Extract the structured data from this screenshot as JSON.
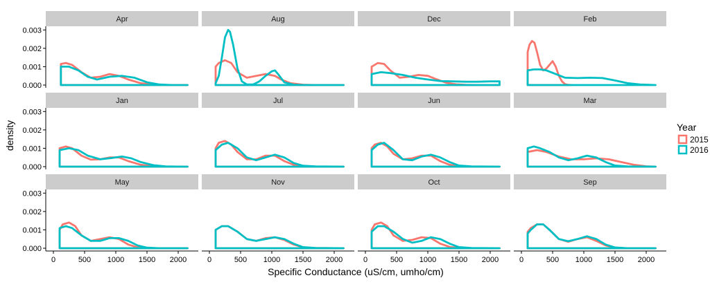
{
  "chart_data": {
    "type": "line",
    "subtype": "density-facets",
    "title": "",
    "xlabel": "Specific Conductance (uS/cm, umho/cm)",
    "ylabel": "density",
    "xlim": [
      0,
      2200
    ],
    "ylim": [
      0,
      0.0032
    ],
    "x_ticks": [
      0,
      500,
      1000,
      1500,
      2000
    ],
    "y_ticks": [
      0.0,
      0.001,
      0.002,
      0.003
    ],
    "y_tick_labels": [
      "0.000",
      "0.001",
      "0.002",
      "0.003"
    ],
    "grid": false,
    "legend": {
      "title": "Year",
      "placement": "right",
      "entries": [
        {
          "name": "2015",
          "color": "#F8766D"
        },
        {
          "name": "2016",
          "color": "#00BFC4"
        }
      ]
    },
    "facets": [
      {
        "label": "Apr",
        "series": [
          {
            "name": "2015",
            "x": [
              120,
              200,
              300,
              450,
              600,
              750,
              900,
              1050,
              1200,
              1400,
              1600,
              1800,
              2000,
              2150
            ],
            "y": [
              0.00115,
              0.0012,
              0.0011,
              0.0007,
              0.0004,
              0.00045,
              0.0006,
              0.0005,
              0.0003,
              0.0001,
              2e-05,
              0,
              0,
              0
            ]
          },
          {
            "name": "2016",
            "x": [
              120,
              250,
              400,
              550,
              700,
              900,
              1100,
              1300,
              1500,
              1700,
              1900,
              2150
            ],
            "y": [
              0.001,
              0.001,
              0.0008,
              0.00045,
              0.0003,
              0.00045,
              0.0005,
              0.0004,
              0.00015,
              3e-05,
              0,
              0
            ]
          }
        ]
      },
      {
        "label": "Aug",
        "series": [
          {
            "name": "2015",
            "x": [
              100,
              150,
              250,
              350,
              450,
              600,
              750,
              900,
              1050,
              1150,
              1300,
              1500,
              1700,
              2000,
              2150
            ],
            "y": [
              0.001,
              0.0012,
              0.00135,
              0.0012,
              0.0007,
              0.0004,
              0.0005,
              0.0006,
              0.0005,
              0.0003,
              0.0001,
              2e-05,
              0,
              0,
              0
            ]
          },
          {
            "name": "2016",
            "x": [
              100,
              150,
              200,
              250,
              300,
              330,
              380,
              450,
              520,
              600,
              700,
              800,
              900,
              1000,
              1050,
              1100,
              1200,
              1350,
              1500,
              1800,
              2150
            ],
            "y": [
              0.0001,
              0.0005,
              0.0015,
              0.0026,
              0.003,
              0.0029,
              0.0022,
              0.0009,
              0.0002,
              3e-05,
              3e-05,
              0.0002,
              0.0005,
              0.00075,
              0.0008,
              0.0006,
              0.00015,
              2e-05,
              0,
              0,
              0
            ]
          }
        ]
      },
      {
        "label": "Dec",
        "series": [
          {
            "name": "2015",
            "x": [
              100,
              200,
              300,
              400,
              550,
              700,
              850,
              1000,
              1150,
              1300,
              1450,
              1600,
              1800,
              2000,
              2150
            ],
            "y": [
              0.001,
              0.0012,
              0.00115,
              0.0008,
              0.0004,
              0.00045,
              0.00055,
              0.0005,
              0.0003,
              0.00012,
              4e-05,
              1e-05,
              0,
              0,
              0
            ]
          },
          {
            "name": "2016",
            "x": [
              100,
              250,
              400,
              600,
              800,
              1000,
              1200,
              1400,
              1600,
              1800,
              2000,
              2150
            ],
            "y": [
              0.0006,
              0.0007,
              0.00065,
              0.00055,
              0.0004,
              0.0003,
              0.00022,
              0.0002,
              0.00018,
              0.00018,
              0.0002,
              0.0002
            ]
          }
        ]
      },
      {
        "label": "Feb",
        "series": [
          {
            "name": "2015",
            "x": [
              100,
              130,
              170,
              210,
              250,
              300,
              350,
              400,
              450,
              500,
              550,
              600,
              650,
              700,
              750,
              800
            ],
            "y": [
              0.0018,
              0.0022,
              0.0024,
              0.0023,
              0.0018,
              0.0011,
              0.0008,
              0.0009,
              0.0011,
              0.0013,
              0.001,
              0.0005,
              0.0002,
              5e-05,
              1e-05,
              0
            ]
          },
          {
            "name": "2016",
            "x": [
              100,
              200,
              300,
              400,
              550,
              700,
              900,
              1100,
              1300,
              1500,
              1700,
              1900,
              2150
            ],
            "y": [
              0.0008,
              0.00085,
              0.00085,
              0.0008,
              0.0006,
              0.0004,
              0.00038,
              0.0004,
              0.00038,
              0.00025,
              0.0001,
              3e-05,
              0
            ]
          }
        ]
      },
      {
        "label": "Jan",
        "series": [
          {
            "name": "2015",
            "x": [
              100,
              200,
              300,
              450,
              600,
              750,
              900,
              1050,
              1200,
              1400,
              1600,
              1800,
              2150
            ],
            "y": [
              0.001,
              0.0011,
              0.001,
              0.0006,
              0.00038,
              0.0004,
              0.0005,
              0.0005,
              0.0003,
              0.0001,
              2e-05,
              0,
              0
            ]
          },
          {
            "name": "2016",
            "x": [
              100,
              250,
              400,
              550,
              750,
              950,
              1100,
              1250,
              1400,
              1600,
              1800,
              2150
            ],
            "y": [
              0.0009,
              0.001,
              0.0009,
              0.0006,
              0.0004,
              0.00048,
              0.00055,
              0.00045,
              0.00025,
              8e-05,
              1e-05,
              0
            ]
          }
        ]
      },
      {
        "label": "Jul",
        "series": [
          {
            "name": "2015",
            "x": [
              100,
              150,
              250,
              350,
              450,
              600,
              750,
              900,
              1050,
              1200,
              1350,
              1500,
              1700,
              2150
            ],
            "y": [
              0.001,
              0.0013,
              0.0014,
              0.0012,
              0.0008,
              0.0004,
              0.0004,
              0.0006,
              0.0006,
              0.0003,
              0.0001,
              2e-05,
              0,
              0
            ]
          },
          {
            "name": "2016",
            "x": [
              100,
              200,
              300,
              450,
              600,
              750,
              900,
              1050,
              1200,
              1350,
              1500,
              1700,
              2150
            ],
            "y": [
              0.0009,
              0.0012,
              0.0013,
              0.001,
              0.0005,
              0.00035,
              0.0005,
              0.00065,
              0.0005,
              0.0002,
              5e-05,
              1e-05,
              0
            ]
          }
        ]
      },
      {
        "label": "Jun",
        "series": [
          {
            "name": "2015",
            "x": [
              100,
              150,
              250,
              350,
              450,
              600,
              750,
              900,
              1050,
              1200,
              1350,
              1500,
              1700,
              2150
            ],
            "y": [
              0.001,
              0.0012,
              0.0013,
              0.0011,
              0.0007,
              0.0004,
              0.00045,
              0.0006,
              0.0006,
              0.0003,
              0.0001,
              2e-05,
              0,
              0
            ]
          },
          {
            "name": "2016",
            "x": [
              100,
              200,
              300,
              450,
              600,
              750,
              900,
              1050,
              1200,
              1350,
              1500,
              1700,
              2150
            ],
            "y": [
              0.0009,
              0.0012,
              0.0013,
              0.0009,
              0.0004,
              0.00035,
              0.00055,
              0.00065,
              0.0005,
              0.00025,
              6e-05,
              1e-05,
              0
            ]
          }
        ]
      },
      {
        "label": "Mar",
        "series": [
          {
            "name": "2015",
            "x": [
              100,
              250,
              400,
              600,
              800,
              1000,
              1200,
              1400,
              1600,
              1800,
              2000,
              2150
            ],
            "y": [
              0.0008,
              0.0009,
              0.0008,
              0.00055,
              0.0004,
              0.0004,
              0.00045,
              0.0004,
              0.00025,
              0.0001,
              2e-05,
              0
            ]
          },
          {
            "name": "2016",
            "x": [
              100,
              200,
              300,
              450,
              600,
              750,
              900,
              1050,
              1200,
              1350,
              1500,
              1700,
              2150
            ],
            "y": [
              0.001,
              0.0011,
              0.001,
              0.0008,
              0.0005,
              0.00035,
              0.00045,
              0.0006,
              0.0005,
              0.00025,
              6e-05,
              1e-05,
              0
            ]
          }
        ]
      },
      {
        "label": "May",
        "series": [
          {
            "name": "2015",
            "x": [
              100,
              150,
              250,
              350,
              450,
              600,
              750,
              900,
              1050,
              1200,
              1350,
              1500,
              1700,
              2150
            ],
            "y": [
              0.001,
              0.0013,
              0.0014,
              0.0012,
              0.0007,
              0.0004,
              0.0005,
              0.0006,
              0.0005,
              0.0002,
              5e-05,
              1e-05,
              0,
              0
            ]
          },
          {
            "name": "2016",
            "x": [
              100,
              200,
              300,
              450,
              600,
              750,
              900,
              1050,
              1200,
              1350,
              1500,
              1700,
              2150
            ],
            "y": [
              0.0011,
              0.0012,
              0.0011,
              0.0007,
              0.0004,
              0.0004,
              0.00055,
              0.00055,
              0.0004,
              0.00015,
              3e-05,
              0,
              0
            ]
          }
        ]
      },
      {
        "label": "Nov",
        "series": [
          {
            "name": "2015",
            "x": [
              100,
              200,
              300,
              450,
              600,
              750,
              900,
              1050,
              1200,
              1350,
              1500,
              1700,
              2150
            ],
            "y": [
              0.001,
              0.0012,
              0.0012,
              0.0009,
              0.0005,
              0.0004,
              0.00055,
              0.0006,
              0.00045,
              0.0002,
              5e-05,
              1e-05,
              0
            ]
          },
          {
            "name": "2016",
            "x": [
              100,
              200,
              300,
              450,
              600,
              750,
              900,
              1050,
              1200,
              1350,
              1500,
              1700,
              2150
            ],
            "y": [
              0.001,
              0.0012,
              0.0012,
              0.0009,
              0.0005,
              0.0004,
              0.0005,
              0.0006,
              0.0005,
              0.00025,
              6e-05,
              1e-05,
              0
            ]
          }
        ]
      },
      {
        "label": "Oct",
        "series": [
          {
            "name": "2015",
            "x": [
              100,
              150,
              250,
              350,
              450,
              600,
              750,
              900,
              1050,
              1200,
              1350,
              1500,
              1700,
              2150
            ],
            "y": [
              0.001,
              0.0013,
              0.0014,
              0.0012,
              0.0007,
              0.0004,
              0.00045,
              0.0006,
              0.00055,
              0.00025,
              7e-05,
              1e-05,
              0,
              0
            ]
          },
          {
            "name": "2016",
            "x": [
              100,
              200,
              300,
              450,
              600,
              750,
              900,
              1050,
              1200,
              1350,
              1500,
              1700,
              2150
            ],
            "y": [
              0.0009,
              0.0012,
              0.0012,
              0.0009,
              0.0005,
              0.0003,
              0.0004,
              0.0006,
              0.0005,
              0.00025,
              6e-05,
              1e-05,
              0
            ]
          }
        ]
      },
      {
        "label": "Sep",
        "series": [
          {
            "name": "2015",
            "x": [
              100,
              150,
              250,
              350,
              450,
              600,
              750,
              900,
              1050,
              1200,
              1350,
              1500,
              1700,
              2150
            ],
            "y": [
              0.0009,
              0.0011,
              0.0013,
              0.0013,
              0.001,
              0.0005,
              0.00035,
              0.0005,
              0.0006,
              0.0004,
              0.00015,
              3e-05,
              0,
              0
            ]
          },
          {
            "name": "2016",
            "x": [
              100,
              150,
              250,
              350,
              450,
              600,
              750,
              900,
              1050,
              1200,
              1350,
              1500,
              1700,
              2150
            ],
            "y": [
              0.0008,
              0.001,
              0.0013,
              0.0013,
              0.001,
              0.0005,
              0.00038,
              0.0005,
              0.00065,
              0.0005,
              0.0002,
              4e-05,
              0,
              0
            ]
          }
        ]
      }
    ]
  }
}
